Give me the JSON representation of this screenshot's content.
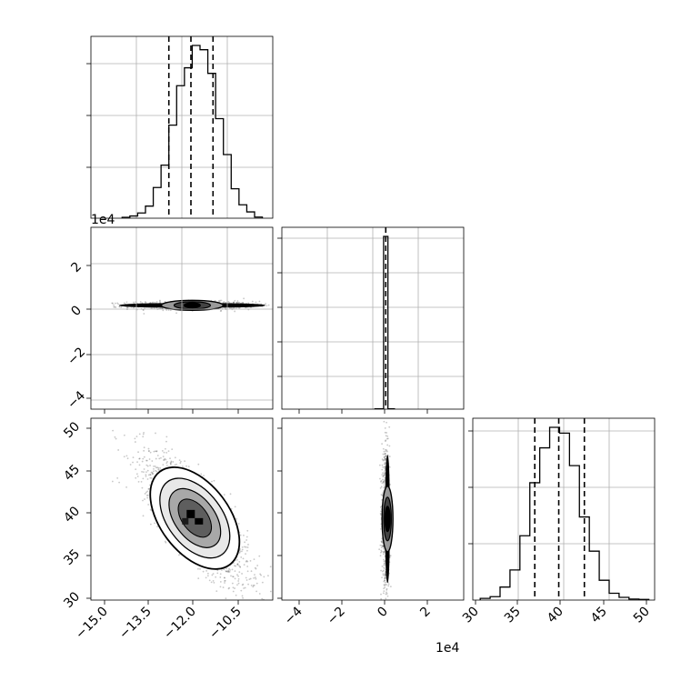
{
  "chart_data": {
    "type": "corner",
    "panels": [
      {
        "id": "p1-hist",
        "type": "histogram",
        "param": "p1",
        "xlim": [
          -16000,
          -9000
        ],
        "bins_x": [
          -14800,
          -14500,
          -14200,
          -13900,
          -13600,
          -13300,
          -13000,
          -12700,
          -12400,
          -12100,
          -11800,
          -11500,
          -11200,
          -10900,
          -10600,
          -10300,
          -10000,
          -9700,
          -9400
        ],
        "counts": [
          5,
          12,
          28,
          65,
          165,
          285,
          500,
          712,
          808,
          928,
          905,
          778,
          535,
          342,
          158,
          72,
          34,
          6
        ],
        "quantiles": [
          -13000,
          -12150,
          -11300
        ],
        "grid": true
      },
      {
        "id": "p1-p2-2d",
        "type": "2d-density",
        "xparam": "p1",
        "yparam": "p2",
        "xlim": [
          -16000,
          -9000
        ],
        "ylim": [
          -46000,
          36000
        ],
        "center": [
          -12100,
          1000
        ],
        "grid": true
      },
      {
        "id": "p2-hist",
        "type": "histogram",
        "param": "p2",
        "xlim": [
          -48000,
          36000
        ],
        "bins_x": [
          -5000,
          -1000,
          1000,
          4000
        ],
        "counts": [
          2,
          960,
          2
        ],
        "quantiles": [
          0
        ],
        "grid": true
      },
      {
        "id": "p1-p3-2d",
        "type": "2d-density",
        "xparam": "p1",
        "yparam": "p3",
        "xlim": [
          -16000,
          -9000
        ],
        "ylim": [
          29.7,
          51
        ],
        "center": [
          -12000,
          39
        ],
        "grid": false
      },
      {
        "id": "p2-p3-2d",
        "type": "2d-density",
        "xparam": "p2",
        "yparam": "p3",
        "xlim": [
          -48000,
          36000
        ],
        "ylim": [
          29.7,
          51
        ],
        "center": [
          0,
          39
        ],
        "grid": false
      },
      {
        "id": "p3-hist",
        "type": "histogram",
        "param": "p3",
        "xlim": [
          29,
          51
        ],
        "bins_x": [
          29.9,
          31.1,
          32.3,
          33.5,
          34.7,
          35.9,
          37.1,
          38.3,
          39.5,
          40.7,
          41.9,
          43.1,
          44.3,
          45.5,
          46.7,
          47.9,
          49.1,
          50.3
        ],
        "counts": [
          5,
          10,
          38,
          88,
          188,
          343,
          445,
          505,
          488,
          393,
          243,
          143,
          58,
          20,
          8,
          3,
          2
        ],
        "quantiles": [
          36.5,
          39.4,
          42.5
        ],
        "grid": true
      }
    ],
    "tick_labels": {
      "p1": [
        "−15.0",
        "−13.5",
        "−12.0",
        "−10.5"
      ],
      "p2": [
        "−4",
        "−2",
        "0",
        "2"
      ],
      "p3_y": [
        "30",
        "35",
        "40",
        "45",
        "50"
      ],
      "p3_x": [
        "30",
        "35",
        "40",
        "45",
        "50"
      ]
    },
    "offset_labels": {
      "p2_y": "1e4",
      "p2_x": "1e4"
    }
  }
}
